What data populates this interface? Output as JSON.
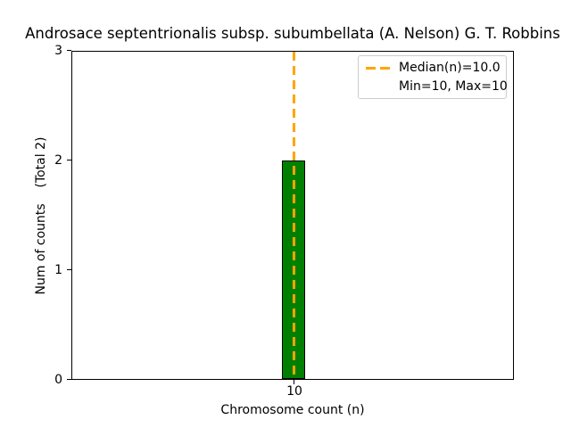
{
  "chart_data": {
    "type": "bar",
    "title": "Androsace septentrionalis subsp. subumbellata (A. Nelson) G. T. Robbins",
    "xlabel": "Chromosome count (n)",
    "ylabel": "Num of counts    (Total 2)",
    "categories": [
      10
    ],
    "values": [
      2
    ],
    "total_counts": 2,
    "ylim": [
      0,
      3
    ],
    "yticks": [
      0,
      1,
      2,
      3
    ],
    "ytick_labels": [
      "0",
      "1",
      "2",
      "3"
    ],
    "xtick_labels": [
      "10"
    ],
    "grid": false,
    "median_line": {
      "x": 10,
      "median": 10.0,
      "min": 10,
      "max": 10,
      "style": "dashed",
      "orientation": "vertical"
    },
    "legend": {
      "position": "upper right",
      "entries": [
        {
          "label": "Median(n)=10.0",
          "handle": "dashed-line"
        },
        {
          "label": "Min=10, Max=10",
          "handle": "none"
        }
      ]
    },
    "colors": {
      "bar_fill": "#008000",
      "bar_edge": "#000000",
      "median_line": "#FFA500",
      "legend_border": "#cccccc",
      "text": "#000000",
      "background": "#ffffff"
    }
  }
}
